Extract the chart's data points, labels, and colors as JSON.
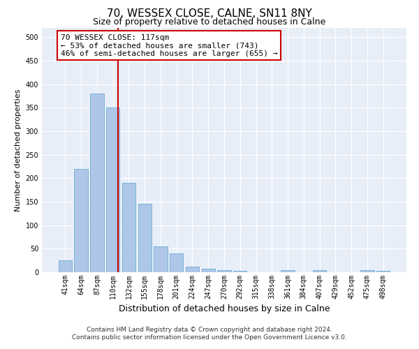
{
  "title": "70, WESSEX CLOSE, CALNE, SN11 8NY",
  "subtitle": "Size of property relative to detached houses in Calne",
  "xlabel": "Distribution of detached houses by size in Calne",
  "ylabel": "Number of detached properties",
  "bin_labels": [
    "41sqm",
    "64sqm",
    "87sqm",
    "110sqm",
    "132sqm",
    "155sqm",
    "178sqm",
    "201sqm",
    "224sqm",
    "247sqm",
    "270sqm",
    "292sqm",
    "315sqm",
    "338sqm",
    "361sqm",
    "384sqm",
    "407sqm",
    "429sqm",
    "452sqm",
    "475sqm",
    "498sqm"
  ],
  "bar_values": [
    25,
    220,
    380,
    350,
    190,
    145,
    55,
    40,
    12,
    7,
    5,
    3,
    0,
    0,
    4,
    0,
    4,
    0,
    0,
    4,
    3
  ],
  "bar_color": "#aec6e8",
  "bar_edge_color": "#6baed6",
  "vline_x": 3.32,
  "vline_color": "#cc0000",
  "annotation_text": "70 WESSEX CLOSE: 117sqm\n← 53% of detached houses are smaller (743)\n46% of semi-detached houses are larger (655) →",
  "annotation_box_color": "#ffffff",
  "annotation_box_edge_color": "#cc0000",
  "ylim": [
    0,
    520
  ],
  "yticks": [
    0,
    50,
    100,
    150,
    200,
    250,
    300,
    350,
    400,
    450,
    500
  ],
  "background_color": "#e8eef8",
  "grid_color": "#ffffff",
  "footnote": "Contains HM Land Registry data © Crown copyright and database right 2024.\nContains public sector information licensed under the Open Government Licence v3.0.",
  "title_fontsize": 11,
  "subtitle_fontsize": 9,
  "xlabel_fontsize": 9,
  "ylabel_fontsize": 8,
  "tick_fontsize": 7,
  "annotation_fontsize": 8,
  "footnote_fontsize": 6.5
}
